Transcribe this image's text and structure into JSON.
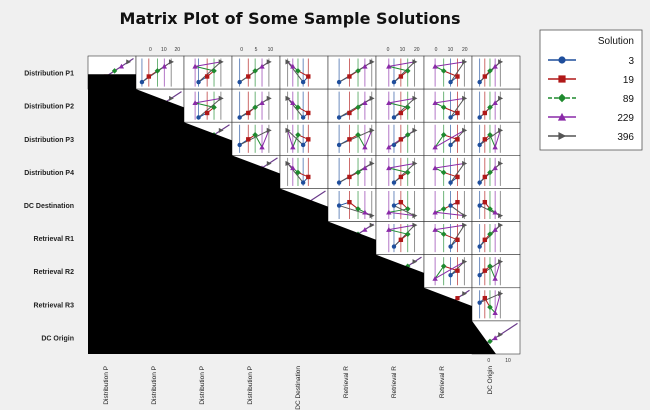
{
  "chart_data": {
    "type": "scatter",
    "title": "Matrix Plot of Some Sample Solutions",
    "variables": [
      "Distribution P1",
      "Distribution P2",
      "Distribution P3",
      "Distribution P4",
      "DC Destination",
      "Retrieval R1",
      "Retrieval R2",
      "Retrieval R3",
      "DC Origin"
    ],
    "column_labels": [
      "Distribution P",
      "Distribution P",
      "Distribution P",
      "Distribution P",
      "DC Destination",
      "Retrieval R",
      "Retrieval R",
      "Retrieval R",
      "DC Origin"
    ],
    "top_tick_labels": [
      "0",
      "10",
      "20",
      "0",
      "5",
      "10",
      "0",
      "10",
      "20",
      "0",
      "10",
      "20"
    ],
    "bottom_tick_labels": [
      "0",
      "10"
    ],
    "legend": {
      "title": "Solution",
      "placement": "right",
      "entries": [
        {
          "name": "3",
          "color": "#1f4e9c",
          "marker": "circle"
        },
        {
          "name": "19",
          "color": "#b01818",
          "marker": "square"
        },
        {
          "name": "89",
          "color": "#1e8a2e",
          "marker": "diamond"
        },
        {
          "name": "229",
          "color": "#8a2aa8",
          "marker": "triangle-up"
        },
        {
          "name": "396",
          "color": "#555555",
          "marker": "triangle-right"
        }
      ]
    },
    "series": [
      {
        "name": "3",
        "values": [
          4,
          2,
          7,
          3,
          12,
          5,
          9,
          14,
          3
        ]
      },
      {
        "name": "19",
        "values": [
          9,
          6,
          12,
          8,
          15,
          11,
          13,
          18,
          6
        ]
      },
      {
        "name": "89",
        "values": [
          14,
          11,
          16,
          12,
          9,
          16,
          17,
          10,
          9
        ]
      },
      {
        "name": "229",
        "values": [
          18,
          15,
          5,
          16,
          6,
          20,
          6,
          5,
          12
        ]
      },
      {
        "name": "396",
        "values": [
          22,
          19,
          20,
          20,
          3,
          24,
          21,
          22,
          15
        ]
      }
    ],
    "range": [
      0,
      25
    ],
    "lower_triangle": "blacked-out",
    "grid": false
  }
}
